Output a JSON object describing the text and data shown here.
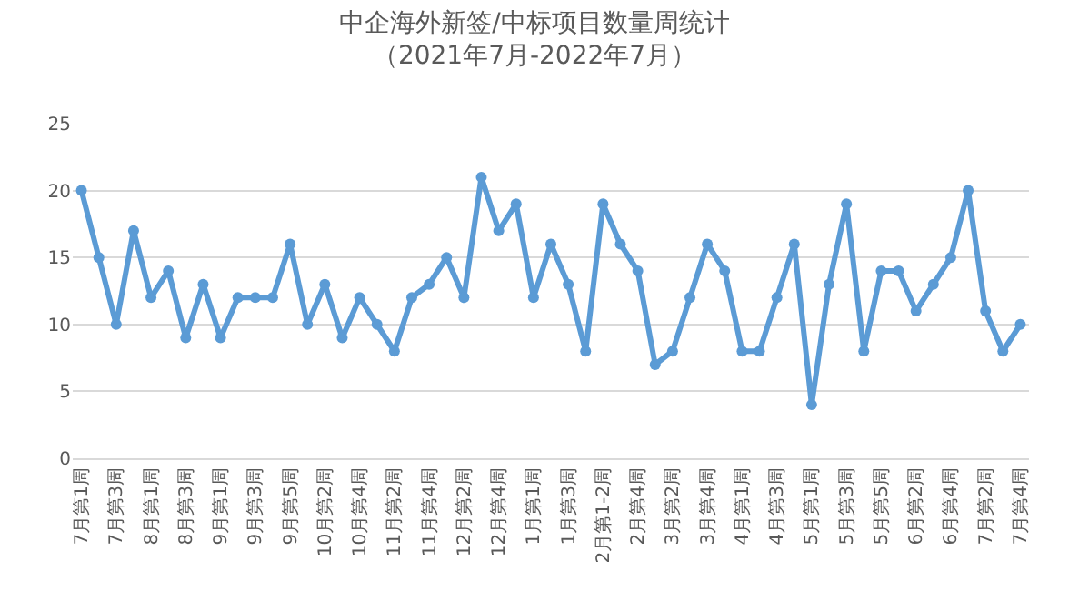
{
  "chart_data": {
    "type": "line",
    "title": "中企海外新签/中标项目数量周统计",
    "subtitle": "（2021年7月-2022年7月）",
    "categories": [
      "7月第1周",
      null,
      "7月第3周",
      null,
      "8月第1周",
      null,
      "8月第3周",
      null,
      "9月第1周",
      null,
      "9月第3周",
      null,
      "9月第5周",
      null,
      "10月第2周",
      null,
      "10月第4周",
      null,
      "11月第2周",
      null,
      "11月第4周",
      null,
      "12月第2周",
      null,
      "12月第4周",
      null,
      "1月第1周",
      null,
      "1月第3周",
      null,
      "2月第1-2周",
      null,
      "2月第4周",
      null,
      "3月第2周",
      null,
      "3月第4周",
      null,
      "4月第1周",
      null,
      "4月第3周",
      null,
      "5月第1周",
      null,
      "5月第3周",
      null,
      "5月第5周",
      null,
      "6月第2周",
      null,
      "6月第4周",
      null,
      "7月第2周",
      null,
      "7月第4周"
    ],
    "series": [
      {
        "color": "#5b9bd5",
        "values": [
          20,
          15,
          10,
          17,
          12,
          14,
          9,
          13,
          9,
          12,
          12,
          12,
          16,
          10,
          13,
          9,
          12,
          10,
          8,
          12,
          13,
          15,
          12,
          21,
          17,
          19,
          12,
          16,
          13,
          8,
          19,
          16,
          14,
          7,
          8,
          12,
          16,
          14,
          8,
          8,
          12,
          16,
          4,
          13,
          19,
          8,
          14,
          14,
          11,
          13,
          15,
          20,
          11,
          8,
          10
        ]
      }
    ],
    "ylim": [
      0,
      25
    ],
    "yticks": [
      0,
      5,
      10,
      15,
      20,
      25
    ],
    "grid": "y",
    "legend": false,
    "marker": "circle",
    "line_style": "solid"
  }
}
